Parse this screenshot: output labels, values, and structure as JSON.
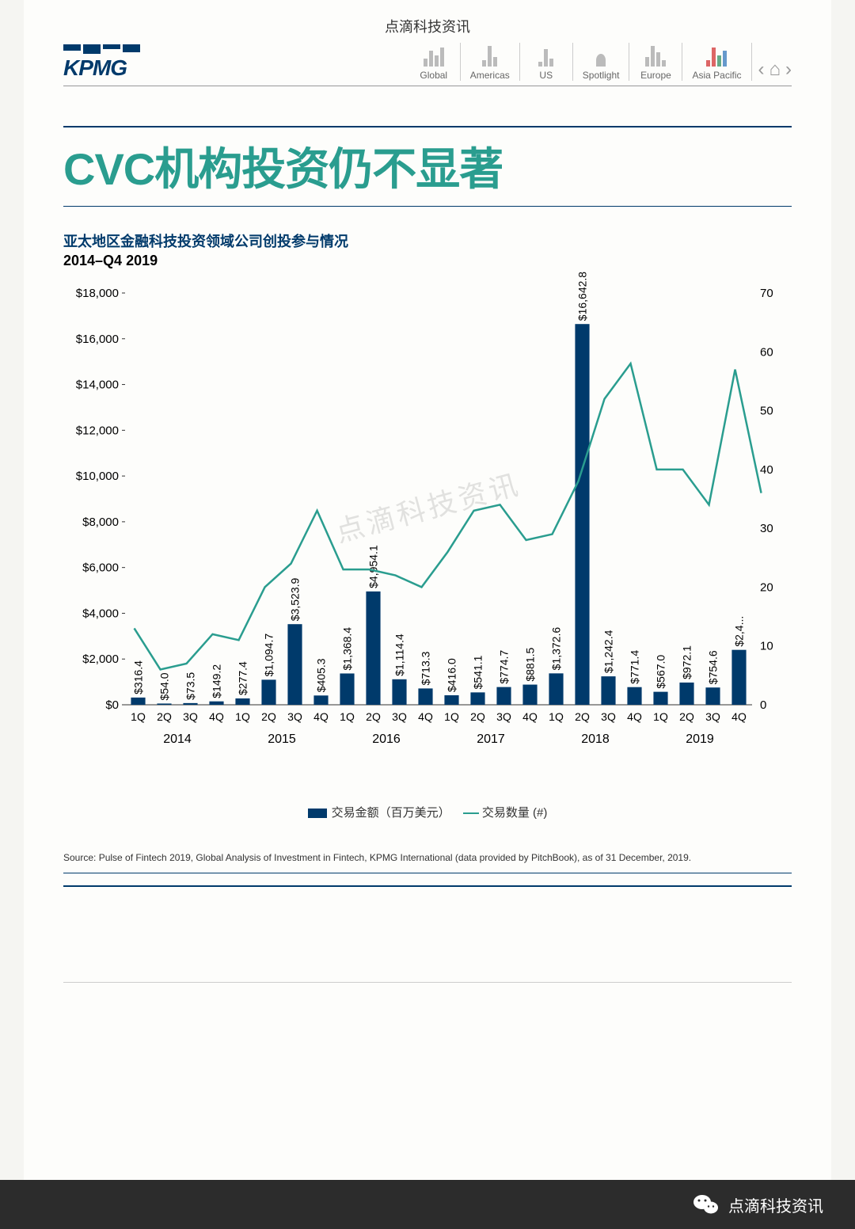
{
  "header": {
    "watermark": "点滴科技资讯",
    "logo": "KPMG",
    "nav": [
      "Global",
      "Americas",
      "US",
      "Spotlight",
      "Europe",
      "Asia Pacific"
    ]
  },
  "title": "CVC机构投资仍不显著",
  "subtitle": "亚太地区金融科技投资领域公司创投参与情况",
  "period": "2014–Q4 2019",
  "watermark_mid": "点滴科技资讯",
  "chart": {
    "type": "bar+line",
    "bar_color": "#003a6b",
    "line_color": "#2a9d8f",
    "background": "#fdfdfb",
    "left_ylim": [
      0,
      18000
    ],
    "left_ytick_step": 2000,
    "left_ticks": [
      "$0",
      "$2,000",
      "$4,000",
      "$6,000",
      "$8,000",
      "$10,000",
      "$12,000",
      "$14,000",
      "$16,000",
      "$18,000"
    ],
    "right_ylim": [
      0,
      70
    ],
    "right_ytick_step": 10,
    "right_ticks": [
      "0",
      "10",
      "20",
      "30",
      "40",
      "50",
      "60",
      "70"
    ],
    "quarters": [
      "1Q",
      "2Q",
      "3Q",
      "4Q",
      "1Q",
      "2Q",
      "3Q",
      "4Q",
      "1Q",
      "2Q",
      "3Q",
      "4Q",
      "1Q",
      "2Q",
      "3Q",
      "4Q",
      "1Q",
      "2Q",
      "3Q",
      "4Q",
      "1Q",
      "2Q",
      "3Q",
      "4Q"
    ],
    "years": [
      "2014",
      "2015",
      "2016",
      "2017",
      "2018",
      "2019"
    ],
    "bar_values": [
      316.4,
      54.0,
      73.5,
      149.2,
      277.4,
      1094.7,
      3523.9,
      405.3,
      1368.4,
      4954.1,
      1114.4,
      713.3,
      416.0,
      541.1,
      774.7,
      881.5,
      1372.6,
      16642.8,
      1242.4,
      771.4,
      567.0,
      972.1,
      754.6,
      2400
    ],
    "bar_labels": [
      "$316.4",
      "$54.0",
      "$73.5",
      "$149.2",
      "$277.4",
      "$1,094.7",
      "$3,523.9",
      "$405.3",
      "$1,368.4",
      "$4,954.1",
      "$1,114.4",
      "$713.3",
      "$416.0",
      "$541.1",
      "$774.7",
      "$881.5",
      "$1,372.6",
      "$16,642.8",
      "$1,242.4",
      "$771.4",
      "$567.0",
      "$972.1",
      "$754.6",
      "$2,4..."
    ],
    "line_values": [
      13,
      6,
      7,
      12,
      11,
      20,
      24,
      33,
      23,
      23,
      22,
      20,
      26,
      33,
      34,
      28,
      29,
      38,
      52,
      58,
      40,
      40,
      34,
      57,
      36
    ],
    "line_x_extra_tail": true,
    "bar_width": 0.55,
    "label_fontsize": 14,
    "axis_fontsize": 15,
    "tick_fontsize": 14
  },
  "legend": {
    "bar": "交易金额（百万美元）",
    "line": "交易数量 (#)"
  },
  "source": "Source: Pulse of Fintech 2019, Global Analysis of Investment in Fintech, KPMG International (data provided by PitchBook), as of 31 December, 2019.",
  "footer": "点滴科技资讯"
}
